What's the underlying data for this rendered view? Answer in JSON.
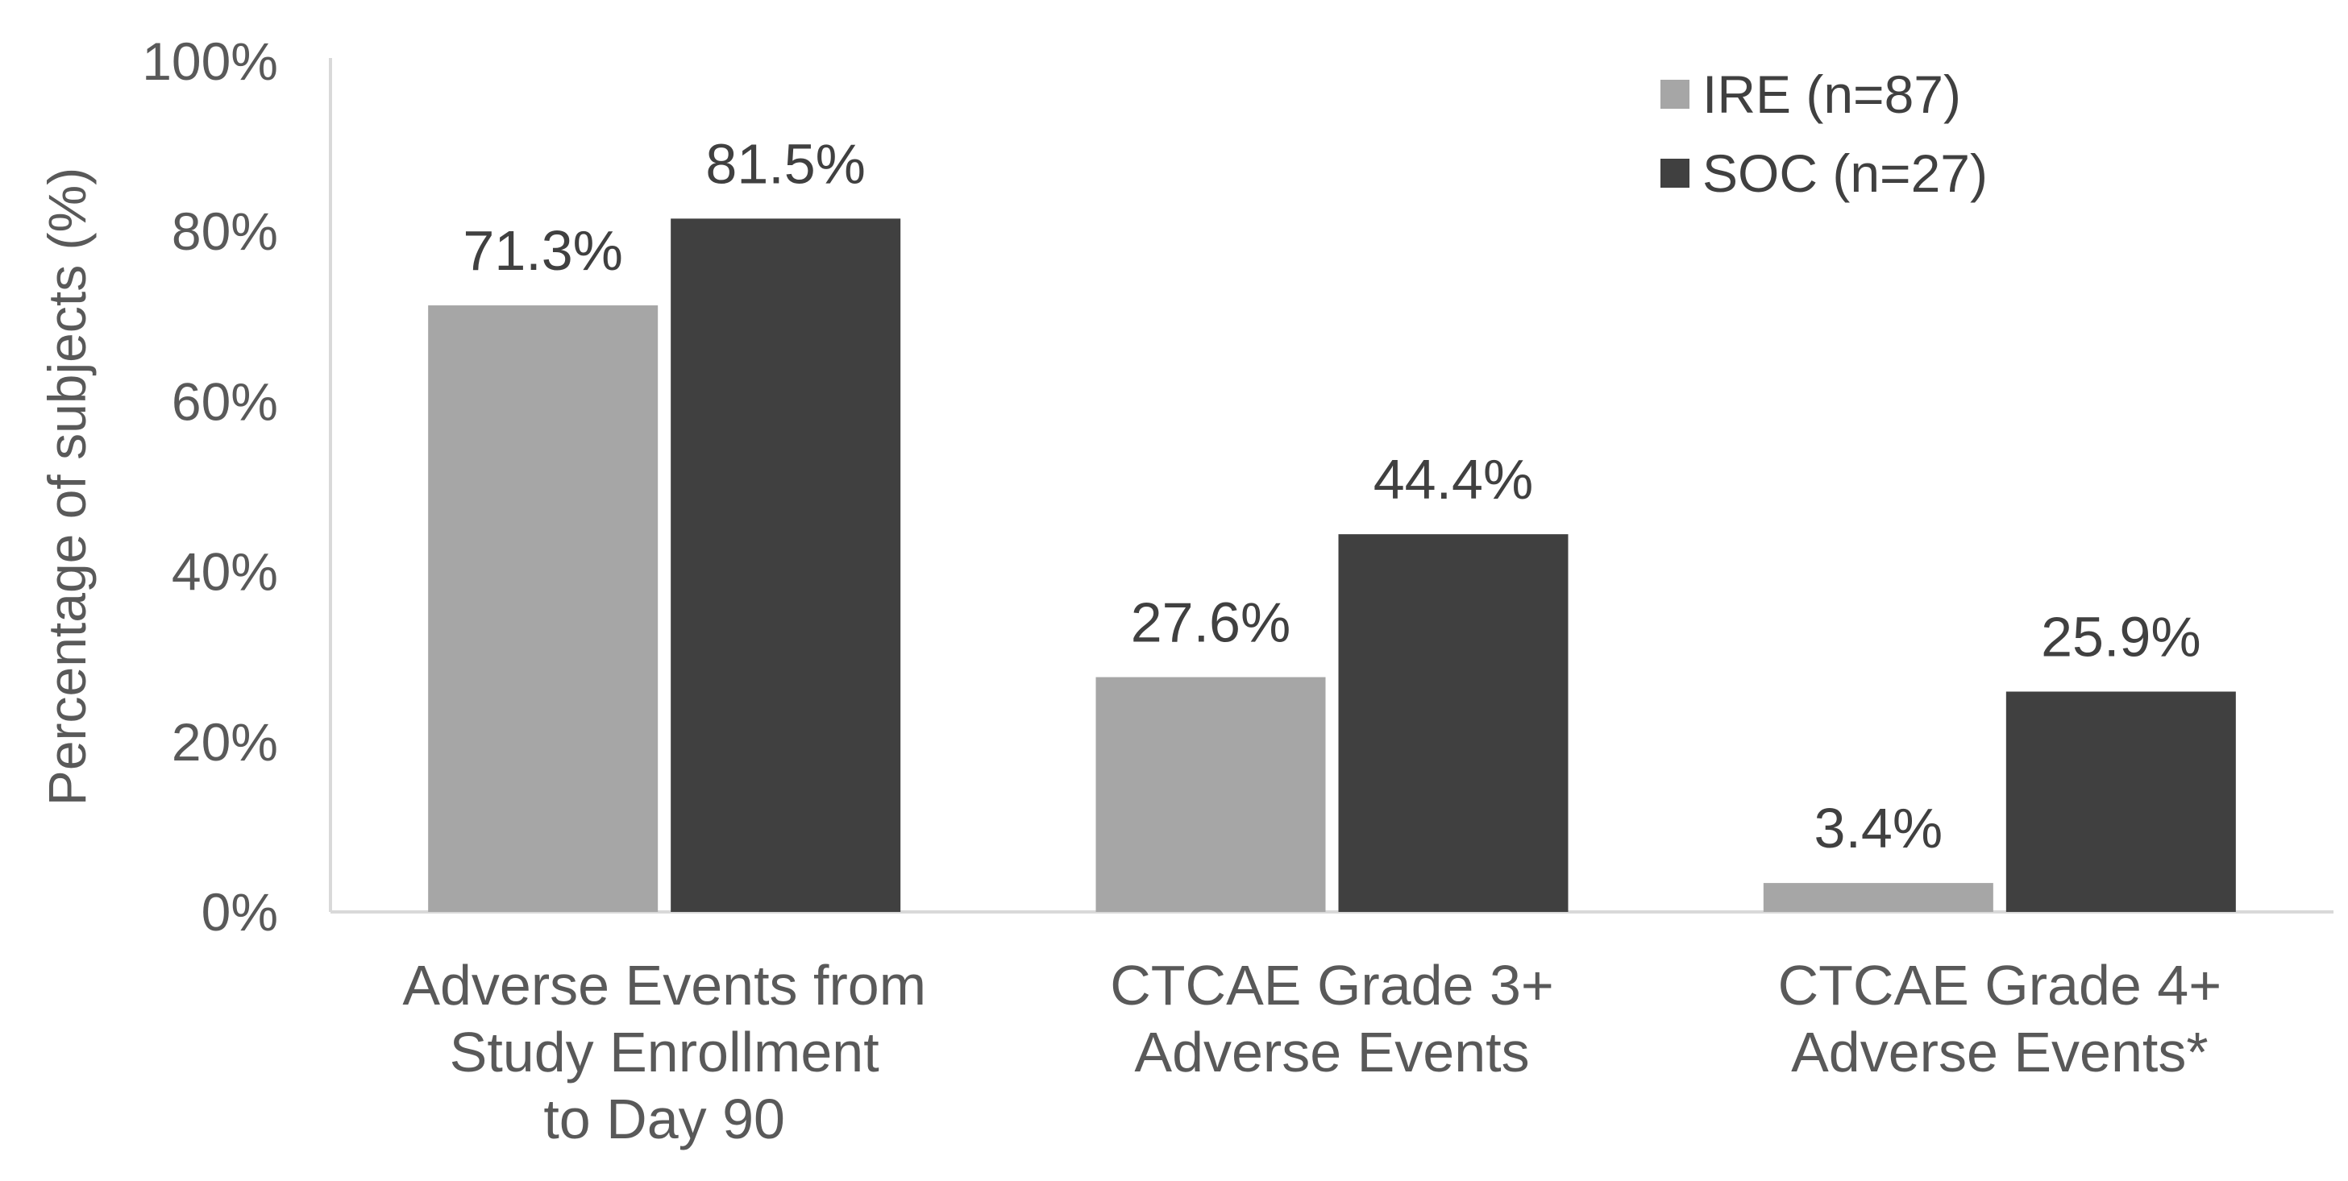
{
  "chart_data": {
    "type": "bar",
    "title": "",
    "xlabel": "",
    "ylabel": "Percentage of subjects (%)",
    "ylim": [
      0,
      100
    ],
    "yticks": [
      0,
      20,
      40,
      60,
      80,
      100
    ],
    "ytick_labels": [
      "0%",
      "20%",
      "40%",
      "60%",
      "80%",
      "100%"
    ],
    "grid": false,
    "legend_position": "top-right",
    "categories": [
      [
        "Adverse Events from",
        "Study Enrollment",
        "to Day 90"
      ],
      [
        "CTCAE Grade 3+",
        "Adverse Events"
      ],
      [
        "CTCAE Grade 4+",
        "Adverse Events*"
      ]
    ],
    "series": [
      {
        "name": "IRE (n=87)",
        "color": "#a6a6a6",
        "values": [
          71.3,
          27.6,
          3.4
        ],
        "labels": [
          "71.3%",
          "27.6%",
          "3.4%"
        ]
      },
      {
        "name": "SOC (n=27)",
        "color": "#404040",
        "values": [
          81.5,
          44.4,
          25.9
        ],
        "labels": [
          "81.5%",
          "44.4%",
          "25.9%"
        ]
      }
    ]
  }
}
